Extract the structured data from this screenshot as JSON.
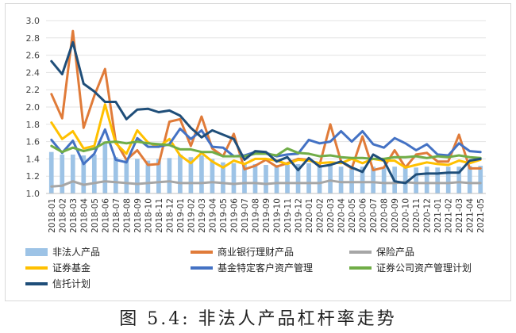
{
  "chart_data": {
    "type": "bar+line",
    "title": "",
    "xlabel": "",
    "ylabel": "",
    "ylim": [
      1.0,
      3.0
    ],
    "yticks": [
      "1.0",
      "1.2",
      "1.4",
      "1.6",
      "1.8",
      "2.0",
      "2.2",
      "2.4",
      "2.6",
      "2.8",
      "3.0"
    ],
    "grid": "horizontal",
    "legend_position": "bottom",
    "categories": [
      "2018-01",
      "2018-02",
      "2018-03",
      "2018-04",
      "2018-05",
      "2018-06",
      "2018-07",
      "2018-08",
      "2018-09",
      "2018-10",
      "2018-11",
      "2018-12",
      "2019-01",
      "2019-02",
      "2019-03",
      "2019-04",
      "2019-05",
      "2019-06",
      "2019-07",
      "2019-08",
      "2019-09",
      "2019-10",
      "2019-11",
      "2019-12",
      "2020-01",
      "2020-02",
      "2020-03",
      "2020-04",
      "2020-05",
      "2020-06",
      "2020-07",
      "2020-08",
      "2020-09",
      "2020-10",
      "2020-11",
      "2020-12",
      "2021-01",
      "2021-02",
      "2021-03",
      "2021-04",
      "2021-05"
    ],
    "bar_series": {
      "name": "非法人产品",
      "color": "#9dc3e6",
      "values": [
        1.48,
        1.45,
        1.45,
        1.44,
        1.45,
        1.6,
        1.42,
        1.39,
        1.4,
        1.38,
        1.4,
        1.41,
        1.45,
        1.42,
        1.44,
        1.4,
        1.36,
        1.35,
        1.34,
        1.34,
        1.33,
        1.33,
        1.33,
        1.34,
        1.35,
        1.33,
        1.34,
        1.31,
        1.3,
        1.31,
        1.31,
        1.3,
        1.31,
        1.3,
        1.3,
        1.31,
        1.3,
        1.31,
        1.31,
        1.32,
        1.32
      ]
    },
    "series": [
      {
        "name": "商业银行理财产品",
        "color": "#e07b39",
        "values": [
          2.15,
          1.87,
          2.88,
          1.76,
          2.13,
          2.44,
          1.6,
          1.39,
          1.5,
          1.33,
          1.34,
          1.83,
          1.86,
          1.55,
          1.89,
          1.52,
          1.43,
          1.69,
          1.28,
          1.32,
          1.39,
          1.31,
          1.35,
          1.4,
          1.39,
          1.33,
          1.8,
          1.37,
          1.29,
          1.66,
          1.27,
          1.3,
          1.5,
          1.3,
          1.45,
          1.47,
          1.37,
          1.37,
          1.68,
          1.29,
          1.29
        ]
      },
      {
        "name": "保险产品",
        "color": "#a6a6a6",
        "values": [
          1.08,
          1.09,
          1.14,
          1.1,
          1.12,
          1.14,
          1.13,
          1.12,
          1.11,
          1.12,
          1.13,
          1.14,
          1.12,
          1.12,
          1.12,
          1.13,
          1.12,
          1.11,
          1.12,
          1.12,
          1.11,
          1.12,
          1.12,
          1.12,
          1.12,
          1.12,
          1.15,
          1.13,
          1.13,
          1.13,
          1.13,
          1.12,
          1.12,
          1.13,
          1.12,
          1.12,
          1.12,
          1.12,
          1.13,
          1.12,
          1.12
        ]
      },
      {
        "name": "证券基金",
        "color": "#ffc000",
        "values": [
          1.82,
          1.63,
          1.72,
          1.52,
          1.55,
          2.03,
          1.58,
          1.46,
          1.73,
          1.59,
          1.54,
          1.63,
          1.44,
          1.35,
          1.47,
          1.37,
          1.3,
          1.38,
          1.34,
          1.4,
          1.4,
          1.38,
          1.34,
          1.39,
          1.38,
          1.35,
          1.36,
          1.35,
          1.4,
          1.35,
          1.4,
          1.38,
          1.38,
          1.3,
          1.33,
          1.36,
          1.34,
          1.33,
          1.38,
          1.35,
          1.39
        ]
      },
      {
        "name": "基金特定客户资产管理",
        "color": "#4472c4",
        "values": [
          1.62,
          1.47,
          1.61,
          1.34,
          1.46,
          1.74,
          1.39,
          1.36,
          1.64,
          1.54,
          1.54,
          1.57,
          1.75,
          1.63,
          1.73,
          1.54,
          1.53,
          1.43,
          1.44,
          1.48,
          1.47,
          1.43,
          1.45,
          1.46,
          1.62,
          1.58,
          1.6,
          1.72,
          1.6,
          1.72,
          1.57,
          1.53,
          1.64,
          1.58,
          1.5,
          1.57,
          1.45,
          1.44,
          1.58,
          1.49,
          1.48
        ]
      },
      {
        "name": "证券公司资产管理计划",
        "color": "#70ad47",
        "values": [
          1.55,
          1.48,
          1.53,
          1.49,
          1.52,
          1.59,
          1.6,
          1.58,
          1.6,
          1.58,
          1.57,
          1.56,
          1.51,
          1.51,
          1.48,
          1.48,
          1.43,
          1.43,
          1.43,
          1.46,
          1.46,
          1.44,
          1.52,
          1.47,
          1.46,
          1.43,
          1.44,
          1.42,
          1.41,
          1.41,
          1.4,
          1.4,
          1.42,
          1.42,
          1.43,
          1.41,
          1.43,
          1.42,
          1.44,
          1.42,
          1.41
        ]
      },
      {
        "name": "信托计划",
        "color": "#1f4e79",
        "values": [
          2.53,
          2.38,
          2.75,
          2.27,
          2.18,
          2.06,
          2.06,
          1.86,
          1.97,
          1.98,
          1.94,
          1.96,
          1.9,
          1.76,
          1.65,
          1.73,
          1.68,
          1.63,
          1.39,
          1.49,
          1.48,
          1.37,
          1.42,
          1.27,
          1.41,
          1.31,
          1.33,
          1.37,
          1.3,
          1.25,
          1.45,
          1.38,
          1.14,
          1.12,
          1.22,
          1.23,
          1.23,
          1.24,
          1.24,
          1.38,
          1.4
        ]
      }
    ]
  },
  "caption": "图 5.4:  非法人产品杠杆率走势"
}
